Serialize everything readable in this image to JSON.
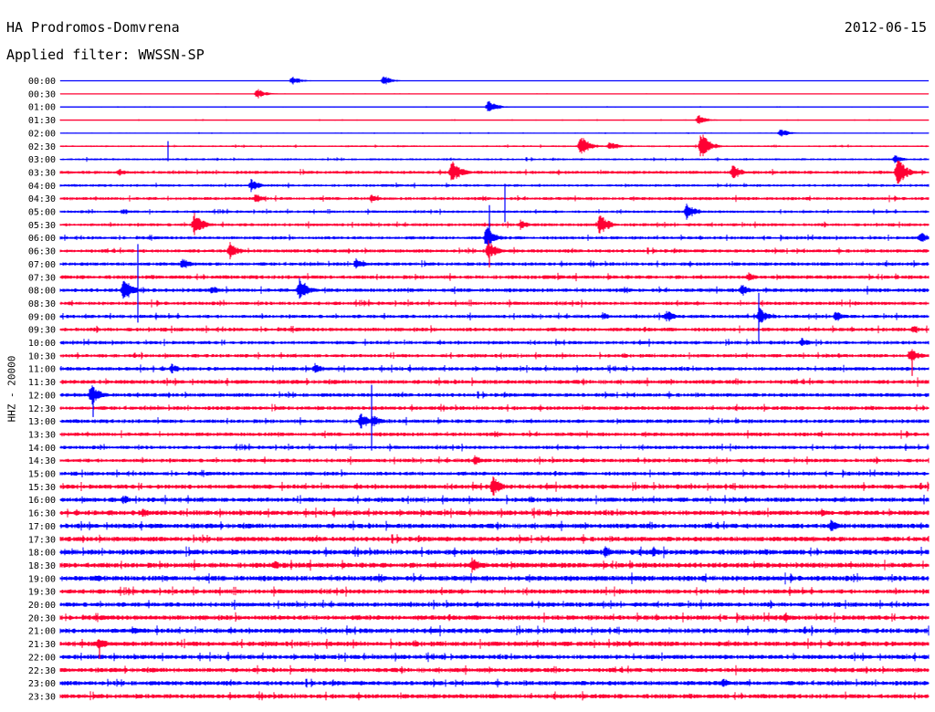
{
  "header": {
    "station": "HA Prodromos-Domvrena",
    "date": "2012-06-15",
    "filter": "Applied filter: WWSSN-SP"
  },
  "chart_data": {
    "type": "line",
    "title": "HA Prodromos-Domvrena",
    "ylabel": "HHZ - 20000",
    "row_labels": [
      "00:00",
      "00:30",
      "01:00",
      "01:30",
      "02:00",
      "02:30",
      "03:00",
      "03:30",
      "04:00",
      "04:30",
      "05:00",
      "05:30",
      "06:00",
      "06:30",
      "07:00",
      "07:30",
      "08:00",
      "08:30",
      "09:00",
      "09:30",
      "10:00",
      "10:30",
      "11:00",
      "11:30",
      "12:00",
      "12:30",
      "13:00",
      "13:30",
      "14:00",
      "14:30",
      "15:00",
      "15:30",
      "16:00",
      "16:30",
      "17:00",
      "17:30",
      "18:00",
      "18:30",
      "19:00",
      "19:30",
      "20:00",
      "20:30",
      "21:00",
      "21:30",
      "22:00",
      "22:30",
      "23:00",
      "23:30"
    ],
    "series_colors": [
      "#0000ff",
      "#ff0033"
    ],
    "noise_level": [
      0.2,
      0.3,
      0.4,
      0.5,
      0.5,
      1.0,
      1.2,
      1.8,
      1.5,
      1.8,
      1.5,
      1.8,
      1.8,
      2.0,
      2.0,
      2.2,
      2.2,
      2.0,
      2.0,
      2.2,
      2.0,
      2.0,
      2.2,
      2.4,
      2.2,
      2.2,
      2.2,
      2.2,
      2.0,
      2.2,
      2.2,
      2.6,
      2.6,
      2.8,
      2.8,
      2.8,
      3.0,
      3.0,
      3.0,
      2.6,
      2.6,
      2.8,
      2.8,
      2.8,
      2.6,
      2.6,
      2.6,
      2.6
    ],
    "events": [
      {
        "row": 0,
        "x": 320,
        "amp": 6
      },
      {
        "row": 0,
        "x": 420,
        "amp": 6
      },
      {
        "row": 1,
        "x": 282,
        "amp": 6
      },
      {
        "row": 2,
        "x": 535,
        "amp": 8
      },
      {
        "row": 3,
        "x": 765,
        "amp": 6
      },
      {
        "row": 4,
        "x": 855,
        "amp": 5
      },
      {
        "row": 5,
        "x": 636,
        "amp": 14
      },
      {
        "row": 5,
        "x": 668,
        "amp": 6
      },
      {
        "row": 5,
        "x": 768,
        "amp": 16
      },
      {
        "row": 6,
        "x": 980,
        "amp": 5
      },
      {
        "row": 7,
        "x": 495,
        "amp": 16
      },
      {
        "row": 7,
        "x": 803,
        "amp": 10
      },
      {
        "row": 7,
        "x": 983,
        "amp": 18
      },
      {
        "row": 7,
        "x": 130,
        "amp": 5
      },
      {
        "row": 8,
        "x": 275,
        "amp": 8
      },
      {
        "row": 9,
        "x": 280,
        "amp": 6
      },
      {
        "row": 9,
        "x": 407,
        "amp": 5
      },
      {
        "row": 10,
        "x": 752,
        "amp": 10
      },
      {
        "row": 10,
        "x": 135,
        "amp": 4
      },
      {
        "row": 11,
        "x": 213,
        "amp": 14
      },
      {
        "row": 11,
        "x": 657,
        "amp": 14
      },
      {
        "row": 11,
        "x": 570,
        "amp": 6
      },
      {
        "row": 12,
        "x": 533,
        "amp": 14
      },
      {
        "row": 12,
        "x": 1008,
        "amp": 8
      },
      {
        "row": 13,
        "x": 252,
        "amp": 10
      },
      {
        "row": 13,
        "x": 535,
        "amp": 12
      },
      {
        "row": 14,
        "x": 200,
        "amp": 7
      },
      {
        "row": 14,
        "x": 390,
        "amp": 7
      },
      {
        "row": 15,
        "x": 820,
        "amp": 6
      },
      {
        "row": 16,
        "x": 136,
        "amp": 14
      },
      {
        "row": 16,
        "x": 328,
        "amp": 16
      },
      {
        "row": 16,
        "x": 232,
        "amp": 6
      },
      {
        "row": 16,
        "x": 812,
        "amp": 8
      },
      {
        "row": 18,
        "x": 730,
        "amp": 8
      },
      {
        "row": 18,
        "x": 832,
        "amp": 10
      },
      {
        "row": 18,
        "x": 915,
        "amp": 7
      },
      {
        "row": 18,
        "x": 660,
        "amp": 5
      },
      {
        "row": 19,
        "x": 1000,
        "amp": 5
      },
      {
        "row": 20,
        "x": 878,
        "amp": 6
      },
      {
        "row": 21,
        "x": 997,
        "amp": 10
      },
      {
        "row": 22,
        "x": 345,
        "amp": 7
      },
      {
        "row": 22,
        "x": 188,
        "amp": 6
      },
      {
        "row": 24,
        "x": 100,
        "amp": 14
      },
      {
        "row": 26,
        "x": 395,
        "amp": 10
      },
      {
        "row": 26,
        "x": 408,
        "amp": 8
      },
      {
        "row": 29,
        "x": 520,
        "amp": 7
      },
      {
        "row": 31,
        "x": 540,
        "amp": 12
      },
      {
        "row": 32,
        "x": 135,
        "amp": 6
      },
      {
        "row": 33,
        "x": 157,
        "amp": 6
      },
      {
        "row": 33,
        "x": 900,
        "amp": 5
      },
      {
        "row": 34,
        "x": 910,
        "amp": 7
      },
      {
        "row": 36,
        "x": 663,
        "amp": 8
      },
      {
        "row": 36,
        "x": 715,
        "amp": 6
      },
      {
        "row": 37,
        "x": 517,
        "amp": 10
      },
      {
        "row": 37,
        "x": 300,
        "amp": 6
      },
      {
        "row": 38,
        "x": 105,
        "amp": 5
      },
      {
        "row": 41,
        "x": 860,
        "amp": 5
      },
      {
        "row": 42,
        "x": 145,
        "amp": 5
      },
      {
        "row": 43,
        "x": 108,
        "amp": 9
      },
      {
        "row": 46,
        "x": 792,
        "amp": 6
      }
    ],
    "spikes": [
      {
        "row": 6,
        "x": 184,
        "up": 20,
        "down": 2
      },
      {
        "row": 8,
        "x": 553,
        "up": 2,
        "down": 40
      },
      {
        "row": 12,
        "x": 536,
        "up": 36,
        "down": 6
      },
      {
        "row": 14,
        "x": 151,
        "up": 22,
        "down": 64
      },
      {
        "row": 13,
        "x": 536,
        "up": 4,
        "down": 18
      },
      {
        "row": 18,
        "x": 831,
        "up": 26,
        "down": 30
      },
      {
        "row": 21,
        "x": 999,
        "up": 2,
        "down": 22
      },
      {
        "row": 24,
        "x": 102,
        "up": 4,
        "down": 24
      },
      {
        "row": 26,
        "x": 407,
        "up": 40,
        "down": 32
      },
      {
        "row": 43,
        "x": 109,
        "up": 4,
        "down": 16
      }
    ]
  }
}
